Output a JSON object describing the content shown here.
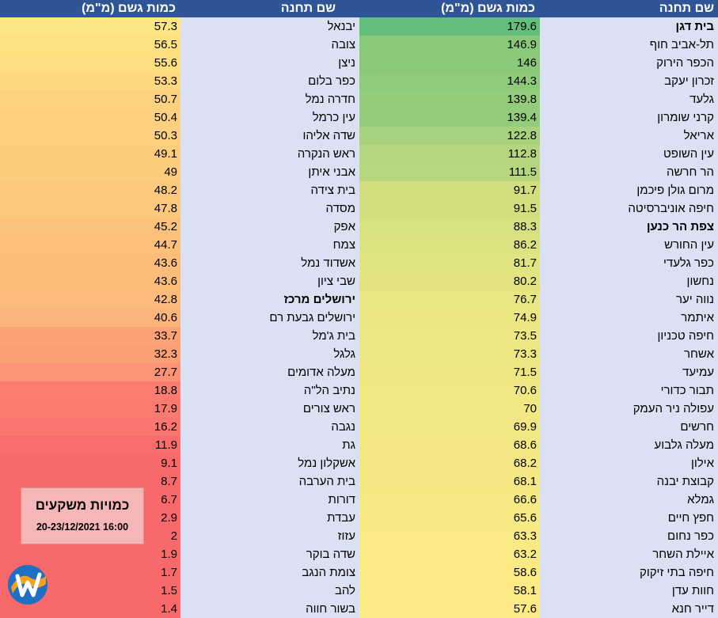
{
  "headers": {
    "left_amount": "כמות גשם (מ\"מ)",
    "left_station": "שם תחנה",
    "right_amount": "כמות גשם (מ\"מ)",
    "right_station": "שם תחנה"
  },
  "right_rows": [
    {
      "name": "בית דגן",
      "value": "179.6",
      "bold": true,
      "color": "#63be7b"
    },
    {
      "name": "תל-אביב חוף",
      "value": "146.9",
      "color": "#89c97a"
    },
    {
      "name": "הכפר הירוק",
      "value": "146",
      "color": "#8ac97a"
    },
    {
      "name": "זכרון יעקב",
      "value": "144.3",
      "color": "#8dca7a"
    },
    {
      "name": "גלעד",
      "value": "139.8",
      "color": "#93cc7b"
    },
    {
      "name": "קרני שומרון",
      "value": "139.4",
      "color": "#93cc7b"
    },
    {
      "name": "אריאל",
      "value": "122.8",
      "color": "#a8d27d"
    },
    {
      "name": "עין השופט",
      "value": "112.8",
      "color": "#b5d67e"
    },
    {
      "name": "הר חרשה",
      "value": "111.5",
      "color": "#b6d77e"
    },
    {
      "name": "מרום גולן פיכמן",
      "value": "91.7",
      "color": "#d3df7f"
    },
    {
      "name": "חיפה אוניברסיטה",
      "value": "91.5",
      "color": "#d3df7f"
    },
    {
      "name": "צפת הר כנען",
      "value": "88.3",
      "bold": true,
      "color": "#d7e180"
    },
    {
      "name": "עין החורש",
      "value": "86.2",
      "color": "#dbe280"
    },
    {
      "name": "כפר גלעדי",
      "value": "81.7",
      "color": "#e1e481"
    },
    {
      "name": "נחשון",
      "value": "80.2",
      "color": "#e3e481"
    },
    {
      "name": "נווה יער",
      "value": "76.7",
      "color": "#e7e682"
    },
    {
      "name": "איתמר",
      "value": "74.9",
      "color": "#eae682"
    },
    {
      "name": "חיפה טכניון",
      "value": "73.5",
      "color": "#ece782"
    },
    {
      "name": "אשחר",
      "value": "73.3",
      "color": "#ece782"
    },
    {
      "name": "עמיעד",
      "value": "71.5",
      "color": "#eee782"
    },
    {
      "name": "תבור כדורי",
      "value": "70.6",
      "color": "#f0e883"
    },
    {
      "name": "עפולה ניר העמק",
      "value": "70",
      "color": "#f1e883"
    },
    {
      "name": "חרשים",
      "value": "69.9",
      "color": "#f1e883"
    },
    {
      "name": "מעלה גלבוע",
      "value": "68.6",
      "color": "#f3e883"
    },
    {
      "name": "אילון",
      "value": "68.2",
      "color": "#f3e883"
    },
    {
      "name": "קבוצת יבנה",
      "value": "68.1",
      "color": "#f3e883"
    },
    {
      "name": "גמלא",
      "value": "66.6",
      "color": "#f5e984"
    },
    {
      "name": "חפץ חיים",
      "value": "65.6",
      "color": "#f7e984"
    },
    {
      "name": "כפר נחום",
      "value": "63.3",
      "color": "#f9ea84"
    },
    {
      "name": "איילת השחר",
      "value": "63.2",
      "color": "#f9ea84"
    },
    {
      "name": "חיפה בתי זיקוק",
      "value": "58.6",
      "color": "#fdea84"
    },
    {
      "name": "חוות עדן",
      "value": "58.1",
      "color": "#fdea84"
    },
    {
      "name": "דייר חנא",
      "value": "57.6",
      "color": "#feea84"
    }
  ],
  "left_rows": [
    {
      "name": "יבנאל",
      "value": "57.3",
      "color": "#fee683"
    },
    {
      "name": "צובה",
      "value": "56.5",
      "color": "#fee282"
    },
    {
      "name": "ניצן",
      "value": "55.6",
      "color": "#fedf81"
    },
    {
      "name": "כפר בלום",
      "value": "53.3",
      "color": "#fed980"
    },
    {
      "name": "חדרה נמל",
      "value": "50.7",
      "color": "#fdd27f"
    },
    {
      "name": "עין כרמל",
      "value": "50.4",
      "color": "#fdd17f"
    },
    {
      "name": "שדה אליהו",
      "value": "50.3",
      "color": "#fdd17f"
    },
    {
      "name": "ראש הנקרה",
      "value": "49.1",
      "color": "#fdcd7e"
    },
    {
      "name": "אבני איתן",
      "value": "49",
      "color": "#fdcd7e"
    },
    {
      "name": "בית צידה",
      "value": "48.2",
      "color": "#fdca7d"
    },
    {
      "name": "מסדה",
      "value": "47.8",
      "color": "#fdc97d"
    },
    {
      "name": "אפק",
      "value": "45.2",
      "color": "#fcc27c"
    },
    {
      "name": "צמח",
      "value": "44.7",
      "color": "#fcc07b"
    },
    {
      "name": "אשדוד נמל",
      "value": "43.6",
      "color": "#fcbd7b"
    },
    {
      "name": "שבי ציון",
      "value": "43.6",
      "color": "#fcbd7b"
    },
    {
      "name": "ירושלים מרכז",
      "value": "42.8",
      "bold": true,
      "color": "#fcbb7a"
    },
    {
      "name": "ירושלים גבעת רם",
      "value": "40.6",
      "color": "#fcb57a"
    },
    {
      "name": "בית ג'מל",
      "value": "33.7",
      "color": "#fba377"
    },
    {
      "name": "גלגל",
      "value": "32.3",
      "color": "#fb9f76"
    },
    {
      "name": "מעלה אדומים",
      "value": "27.7",
      "color": "#fb9374"
    },
    {
      "name": "נתיב הל\"ה",
      "value": "18.8",
      "color": "#f97d70"
    },
    {
      "name": "ראש צורים",
      "value": "17.9",
      "color": "#f97b70"
    },
    {
      "name": "נגבה",
      "value": "16.2",
      "color": "#f9776f"
    },
    {
      "name": "גת",
      "value": "11.9",
      "color": "#f96d6e"
    },
    {
      "name": "אשקלון נמל",
      "value": "9.1",
      "color": "#f8696b"
    },
    {
      "name": "בית הערבה",
      "value": "8.7",
      "color": "#f8696b"
    },
    {
      "name": "דורות",
      "value": "6.7",
      "color": "#f8696b"
    },
    {
      "name": "עבדת",
      "value": "2.9",
      "color": "#f8696b"
    },
    {
      "name": "עזוז",
      "value": "2",
      "color": "#f8696b"
    },
    {
      "name": "שדה בוקר",
      "value": "1.9",
      "color": "#f8696b"
    },
    {
      "name": "צומת הנגב",
      "value": "1.7",
      "color": "#f8696b"
    },
    {
      "name": "להב",
      "value": "1.5",
      "color": "#f8696b"
    },
    {
      "name": "בשור חווה",
      "value": "1.4",
      "color": "#f8696b"
    }
  ],
  "legend": {
    "title": "כמויות משקעים",
    "date": "20-23/12/2021 16:00"
  },
  "logo_icon": "w-logo-icon",
  "colors": {
    "header_bg": "#2f5597",
    "name_bg": "#d9e1f2"
  }
}
